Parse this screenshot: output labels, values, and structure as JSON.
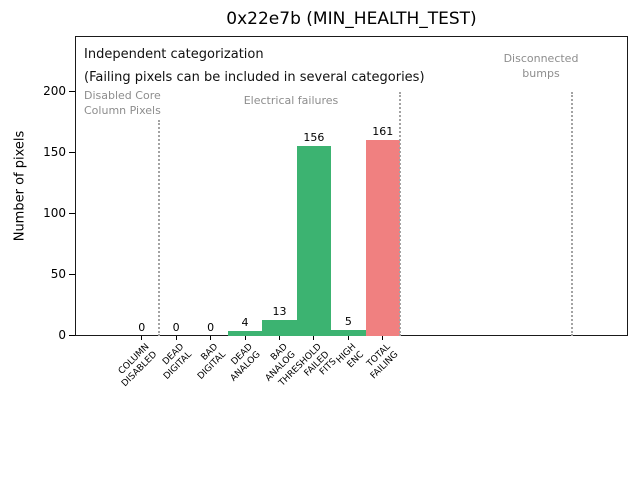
{
  "figure": {
    "title": "0x22e7b (MIN_HEALTH_TEST)"
  },
  "annotations": {
    "independent": "Independent categorization",
    "failing_note": "(Failing pixels can be included in several categories)",
    "regions": [
      {
        "id": "disabled-core-column-pixels",
        "text": "Disabled Core\nColumn Pixels"
      },
      {
        "id": "electrical-failures",
        "text": "Electrical failures"
      },
      {
        "id": "disconnected-bumps",
        "text": "Disconnected\nbumps"
      }
    ]
  },
  "chart_data": {
    "type": "bar",
    "title": "0x22e7b (MIN_HEALTH_TEST)",
    "xlabel": "",
    "ylabel": "Number of pixels",
    "ylim": [
      0,
      246
    ],
    "yticks": [
      0,
      50,
      100,
      150,
      200
    ],
    "grid": false,
    "legend": false,
    "categories": [
      "COLUMN DISABLED",
      "DEAD DIGITAL",
      "BAD DIGITAL",
      "DEAD ANALOG",
      "BAD ANALOG",
      "THRESHOLD FAILED FITS",
      "HIGH ENC",
      "TOTAL FAILING"
    ],
    "category_label_lines": [
      [
        "COLUMN",
        "DISABLED"
      ],
      [
        "DEAD",
        "DIGITAL"
      ],
      [
        "BAD",
        "DIGITAL"
      ],
      [
        "DEAD",
        "ANALOG"
      ],
      [
        "BAD",
        "ANALOG"
      ],
      [
        "THRESHOLD",
        "FAILED",
        "FITS"
      ],
      [
        "HIGH",
        "ENC"
      ],
      [
        "TOTAL",
        "FAILING"
      ]
    ],
    "values": [
      0,
      0,
      0,
      4,
      13,
      156,
      5,
      161
    ],
    "value_labels": [
      "0",
      "0",
      "0",
      "4",
      "13",
      "156",
      "5",
      "161"
    ],
    "bar_colors": [
      "#3cb371",
      "#3cb371",
      "#3cb371",
      "#3cb371",
      "#3cb371",
      "#3cb371",
      "#3cb371",
      "#f08080"
    ],
    "separators_category_units": [
      0.5,
      7.5,
      12.5
    ],
    "colors": {
      "bar_green": "#3cb371",
      "bar_red": "#f08080",
      "region_text_gray": "#8d8d8d",
      "separator_gray": "#a3a3a3",
      "axis_black": "#1a1a1a"
    }
  }
}
